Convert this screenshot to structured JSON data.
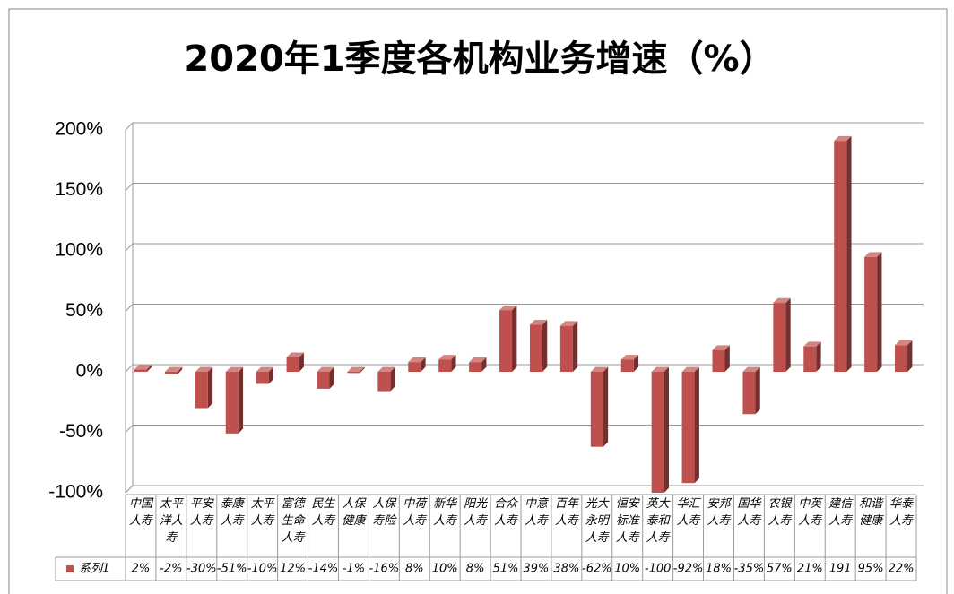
{
  "chart_data": {
    "type": "bar3d",
    "title": "2020年1季度各机构业务增速（%）",
    "categories": [
      "中国人寿",
      "太平洋人寿",
      "平安人寿",
      "泰康人寿",
      "太平人寿",
      "富德生命人寿",
      "民生人寿",
      "人保健康",
      "人保寿险",
      "中荷人寿",
      "新华人寿",
      "阳光人寿",
      "合众人寿",
      "中意人寿",
      "百年人寿",
      "光大永明人寿",
      "恒安标准人寿",
      "英大泰和人寿",
      "华汇人寿",
      "安邦人寿",
      "国华人寿",
      "农银人寿",
      "中英人寿",
      "建信人寿",
      "和谐健康",
      "华泰人寿"
    ],
    "series": [
      {
        "name": "系列1",
        "color": "#c0504d",
        "values": [
          2,
          -2,
          -30,
          -51,
          -10,
          12,
          -14,
          -1,
          -16,
          8,
          10,
          8,
          51,
          39,
          38,
          -62,
          10,
          -100,
          -92,
          18,
          -35,
          57,
          21,
          191,
          95,
          22
        ],
        "value_labels": [
          "2%",
          "-2%",
          "-30%",
          "-51%",
          "-10%",
          "12%",
          "-14%",
          "-1%",
          "-16%",
          "8%",
          "10%",
          "8%",
          "51%",
          "39%",
          "38%",
          "-62%",
          "10%",
          "-100",
          "-92%",
          "18%",
          "-35%",
          "57%",
          "21%",
          "191",
          "95%",
          "22%"
        ]
      }
    ],
    "ylim": [
      -100,
      200
    ],
    "yticks": [
      {
        "value": -100,
        "label": "-100%"
      },
      {
        "value": -50,
        "label": "-50%"
      },
      {
        "value": 0,
        "label": "0%"
      },
      {
        "value": 50,
        "label": "50%"
      },
      {
        "value": 100,
        "label": "100%"
      },
      {
        "value": 150,
        "label": "150%"
      },
      {
        "value": 200,
        "label": "200%"
      }
    ],
    "grid": true,
    "legend": "table"
  }
}
